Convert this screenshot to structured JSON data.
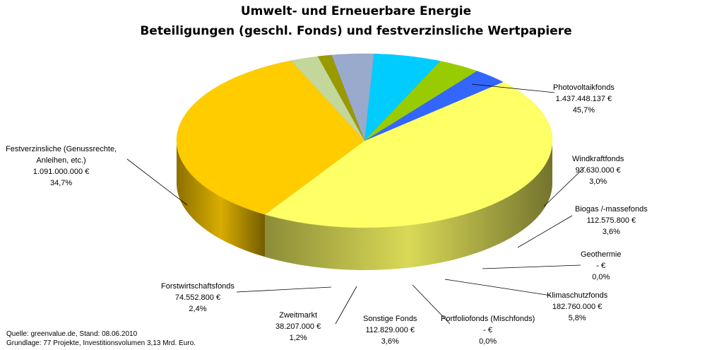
{
  "chart_data": {
    "type": "pie",
    "title": "Umwelt- und Erneuerbare Energie",
    "subtitle": "Beteiligungen (geschl. Fonds) und festverzinsliche Wertpapiere",
    "slices": [
      {
        "key": "photovoltaik",
        "name": "Photovoltaikfonds",
        "amount": "1.437.448.137 €",
        "percent_label": "45,7%",
        "value": 45.7,
        "color": "#FFFF66"
      },
      {
        "key": "windkraft",
        "name": "Windkraftfonds",
        "amount": "93.630.000 €",
        "percent_label": "3,0%",
        "value": 3.0,
        "color": "#3366FF"
      },
      {
        "key": "biogas",
        "name": "Biogas /-massefonds",
        "amount": "112.575.800 €",
        "percent_label": "3,6%",
        "value": 3.6,
        "color": "#99CC00"
      },
      {
        "key": "geothermie",
        "name": "Geothermie",
        "amount": "-   €",
        "percent_label": "0,0%",
        "value": 0.0,
        "color": "#FF9900"
      },
      {
        "key": "klimaschutz",
        "name": "Klimaschutzfonds",
        "amount": "182.760.000 €",
        "percent_label": "5,8%",
        "value": 5.8,
        "color": "#00CCFF"
      },
      {
        "key": "portfolio",
        "name": "Portfoliofonds (Mischfonds)",
        "amount": "-   €",
        "percent_label": "0,0%",
        "value": 0.0,
        "color": "#CC99FF"
      },
      {
        "key": "sonstige",
        "name": "Sonstige Fonds",
        "amount": "112.829.000 €",
        "percent_label": "3,6%",
        "value": 3.6,
        "color": "#99AACC"
      },
      {
        "key": "zweitmarkt",
        "name": "Zweitmarkt",
        "amount": "38.207.000 €",
        "percent_label": "1,2%",
        "value": 1.2,
        "color": "#999900"
      },
      {
        "key": "forst",
        "name": "Forstwirtschaftsfonds",
        "amount": "74.552.800 €",
        "percent_label": "2,4%",
        "value": 2.4,
        "color": "#C4D79B"
      },
      {
        "key": "festverz",
        "name": "Festverzinsliche (Genussrechte, Anleihen, etc.)",
        "name_line1": "Festverzinsliche (Genussrechte,",
        "name_line2": "Anleihen, etc.)",
        "amount": "1.091.000.000 €",
        "percent_label": "34,7%",
        "value": 34.7,
        "color": "#FFCC00"
      }
    ]
  },
  "footer": {
    "source": "Quelle: greenvalue.de, Stand: 08.06.2010",
    "basis": "Grundlage: 77 Projekte, Investitionsvolumen 3,13 Mrd. Euro."
  }
}
